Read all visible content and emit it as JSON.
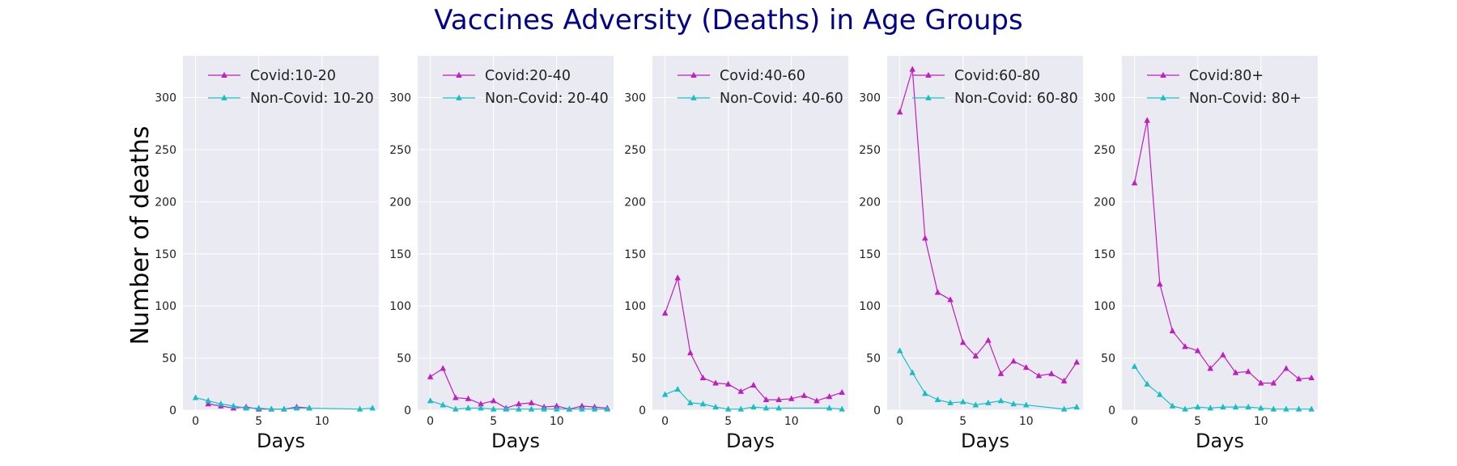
{
  "title": "Vaccines Adversity (Deaths) in Age Groups",
  "ylabel": "Number of deaths",
  "colors": {
    "background": "#eaeaf2",
    "grid": "#ffffff",
    "covid": "#c01ec0",
    "non_covid": "#17bfc4",
    "title": "#00008b"
  },
  "marker": "triangle-up",
  "chart_data": [
    {
      "type": "line",
      "xlabel": "Days",
      "ylim": [
        0,
        340
      ],
      "xlim": [
        -1,
        14.5
      ],
      "xticks": [
        0,
        5,
        10
      ],
      "yticks": [
        0,
        50,
        100,
        150,
        200,
        250,
        300
      ],
      "grid": true,
      "legend": "upper center",
      "series": [
        {
          "name": "Covid:10-20",
          "x": [
            1,
            2,
            3,
            4,
            5,
            6,
            7,
            8,
            9
          ],
          "y": [
            6,
            4,
            2,
            3,
            1,
            1,
            1,
            3,
            2
          ]
        },
        {
          "name": "Non-Covid: 10-20",
          "x": [
            0,
            1,
            2,
            3,
            4,
            5,
            6,
            7,
            8,
            9,
            13,
            14
          ],
          "y": [
            12,
            9,
            6,
            4,
            2,
            2,
            1,
            1,
            2,
            2,
            1,
            2
          ]
        }
      ]
    },
    {
      "type": "line",
      "xlabel": "Days",
      "ylim": [
        0,
        340
      ],
      "xlim": [
        -1,
        14.5
      ],
      "xticks": [
        0,
        5,
        10
      ],
      "yticks": [
        0,
        50,
        100,
        150,
        200,
        250,
        300
      ],
      "grid": true,
      "legend": "upper center",
      "series": [
        {
          "name": "Covid:20-40",
          "x": [
            0,
            1,
            2,
            3,
            4,
            5,
            6,
            7,
            8,
            9,
            10,
            11,
            12,
            13,
            14
          ],
          "y": [
            32,
            40,
            12,
            11,
            6,
            9,
            2,
            6,
            7,
            3,
            4,
            1,
            4,
            3,
            2
          ]
        },
        {
          "name": "Non-Covid: 20-40",
          "x": [
            0,
            1,
            2,
            3,
            4,
            5,
            6,
            7,
            8,
            9,
            10,
            11,
            12,
            13,
            14
          ],
          "y": [
            9,
            5,
            1,
            2,
            2,
            1,
            1,
            1,
            1,
            1,
            1,
            1,
            1,
            1,
            1
          ]
        }
      ]
    },
    {
      "type": "line",
      "xlabel": "Days",
      "ylim": [
        0,
        340
      ],
      "xlim": [
        -1,
        14.5
      ],
      "xticks": [
        0,
        5,
        10
      ],
      "yticks": [
        0,
        50,
        100,
        150,
        200,
        250,
        300
      ],
      "grid": true,
      "legend": "upper center",
      "series": [
        {
          "name": "Covid:40-60",
          "x": [
            0,
            1,
            2,
            3,
            4,
            5,
            6,
            7,
            8,
            9,
            10,
            11,
            12,
            13,
            14
          ],
          "y": [
            93,
            127,
            55,
            31,
            26,
            25,
            18,
            24,
            10,
            10,
            11,
            14,
            9,
            13,
            17
          ]
        },
        {
          "name": "Non-Covid: 40-60",
          "x": [
            0,
            1,
            2,
            3,
            4,
            5,
            6,
            7,
            8,
            9,
            13,
            14
          ],
          "y": [
            15,
            20,
            7,
            6,
            3,
            1,
            1,
            3,
            2,
            2,
            2,
            1
          ]
        }
      ]
    },
    {
      "type": "line",
      "xlabel": "Days",
      "ylim": [
        0,
        340
      ],
      "xlim": [
        -1,
        14.5
      ],
      "xticks": [
        0,
        5,
        10
      ],
      "yticks": [
        0,
        50,
        100,
        150,
        200,
        250,
        300
      ],
      "grid": true,
      "legend": "upper center",
      "series": [
        {
          "name": "Covid:60-80",
          "x": [
            0,
            1,
            2,
            3,
            4,
            5,
            6,
            7,
            8,
            9,
            10,
            11,
            12,
            13,
            14
          ],
          "y": [
            286,
            327,
            165,
            113,
            106,
            65,
            52,
            67,
            35,
            47,
            41,
            33,
            35,
            28,
            46
          ]
        },
        {
          "name": "Non-Covid: 60-80",
          "x": [
            0,
            1,
            2,
            3,
            4,
            5,
            6,
            7,
            8,
            9,
            10,
            13,
            14
          ],
          "y": [
            57,
            36,
            16,
            10,
            7,
            8,
            5,
            7,
            9,
            6,
            5,
            1,
            3
          ]
        }
      ]
    },
    {
      "type": "line",
      "xlabel": "Days",
      "ylim": [
        0,
        340
      ],
      "xlim": [
        -1,
        14.5
      ],
      "xticks": [
        0,
        5,
        10
      ],
      "yticks": [
        0,
        50,
        100,
        150,
        200,
        250,
        300
      ],
      "grid": true,
      "legend": "upper center",
      "series": [
        {
          "name": "Covid:80+",
          "x": [
            0,
            1,
            2,
            3,
            4,
            5,
            6,
            7,
            8,
            9,
            10,
            11,
            12,
            13,
            14
          ],
          "y": [
            218,
            278,
            121,
            76,
            61,
            57,
            40,
            53,
            36,
            37,
            26,
            26,
            40,
            30,
            31
          ]
        },
        {
          "name": "Non-Covid: 80+",
          "x": [
            0,
            1,
            2,
            3,
            4,
            5,
            6,
            7,
            8,
            9,
            10,
            11,
            12,
            13,
            14
          ],
          "y": [
            42,
            25,
            15,
            4,
            1,
            3,
            2,
            3,
            3,
            3,
            2,
            1,
            1,
            1,
            1
          ]
        }
      ]
    }
  ]
}
